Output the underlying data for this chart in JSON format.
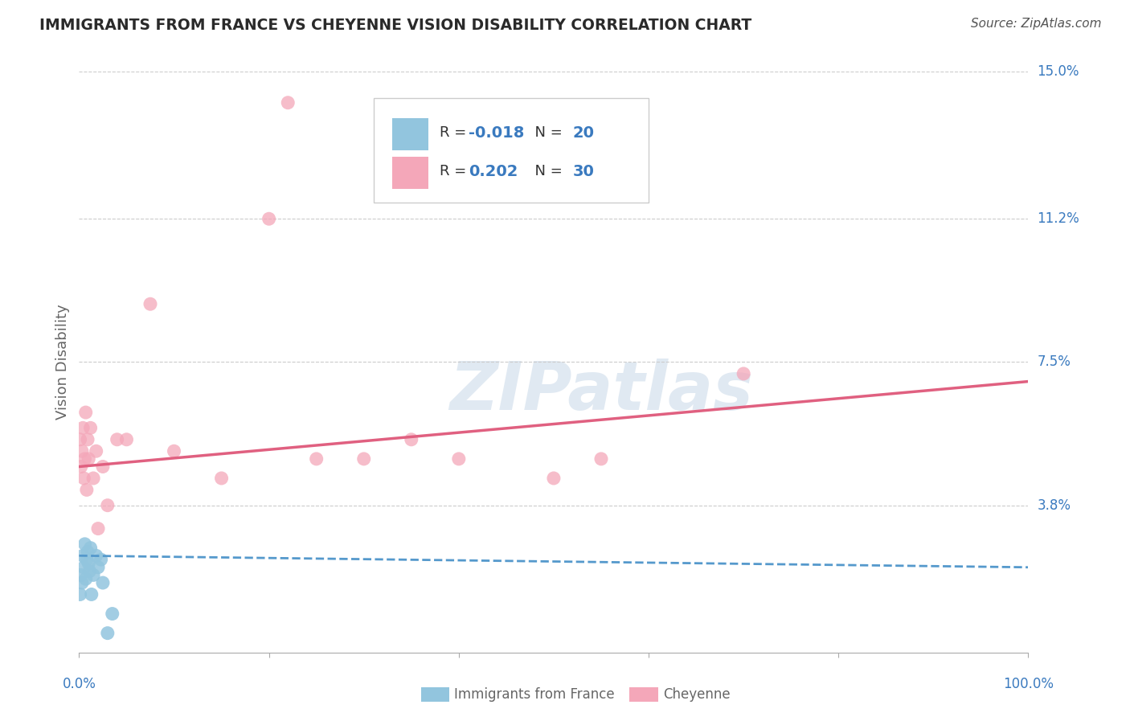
{
  "title": "IMMIGRANTS FROM FRANCE VS CHEYENNE VISION DISABILITY CORRELATION CHART",
  "source": "Source: ZipAtlas.com",
  "ylabel": "Vision Disability",
  "xlim": [
    0,
    100
  ],
  "ylim": [
    0,
    15
  ],
  "yticks": [
    3.8,
    7.5,
    11.2,
    15.0
  ],
  "ytick_labels": [
    "3.8%",
    "7.5%",
    "11.2%",
    "15.0%"
  ],
  "legend_france_R": "-0.018",
  "legend_france_N": "20",
  "legend_cheyenne_R": "0.202",
  "legend_cheyenne_N": "30",
  "france_color": "#92c5de",
  "cheyenne_color": "#f4a7b9",
  "france_line_color": "#5599cc",
  "cheyenne_line_color": "#e06080",
  "background_color": "#ffffff",
  "watermark_text": "ZIPatlas",
  "france_points_x": [
    0.1,
    0.2,
    0.3,
    0.4,
    0.5,
    0.6,
    0.7,
    0.8,
    0.9,
    1.0,
    1.1,
    1.2,
    1.3,
    1.5,
    1.8,
    2.0,
    2.3,
    2.5,
    3.0,
    3.5
  ],
  "france_points_y": [
    1.5,
    2.0,
    1.8,
    2.5,
    2.2,
    2.8,
    1.9,
    2.4,
    2.6,
    2.3,
    2.1,
    2.7,
    1.5,
    2.0,
    2.5,
    2.2,
    2.4,
    1.8,
    0.5,
    1.0
  ],
  "cheyenne_points_x": [
    0.1,
    0.2,
    0.3,
    0.4,
    0.5,
    0.6,
    0.7,
    0.8,
    0.9,
    1.0,
    1.2,
    1.5,
    1.8,
    2.0,
    2.5,
    3.0,
    4.0,
    7.5,
    20.0,
    22.0,
    30.0,
    40.0,
    50.0,
    55.0,
    70.0,
    5.0,
    10.0,
    15.0,
    25.0,
    35.0
  ],
  "cheyenne_points_y": [
    5.5,
    4.8,
    5.2,
    5.8,
    4.5,
    5.0,
    6.2,
    4.2,
    5.5,
    5.0,
    5.8,
    4.5,
    5.2,
    3.2,
    4.8,
    3.8,
    5.5,
    9.0,
    11.2,
    14.2,
    5.0,
    5.0,
    4.5,
    5.0,
    7.2,
    5.5,
    5.2,
    4.5,
    5.0,
    5.5
  ],
  "france_line_x": [
    0,
    100
  ],
  "france_line_y": [
    2.5,
    2.2
  ],
  "cheyenne_line_x": [
    0,
    100
  ],
  "cheyenne_line_y": [
    4.8,
    7.0
  ],
  "grid_color": "#cccccc",
  "tick_color": "#3a7abf",
  "title_color": "#2a2a2a",
  "label_color": "#666666",
  "source_color": "#555555"
}
